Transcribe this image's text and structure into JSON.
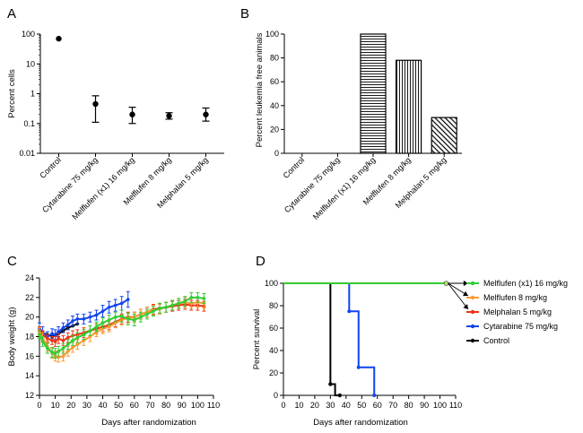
{
  "colors": {
    "green": "#33cc33",
    "orange": "#ff9933",
    "red": "#ee3311",
    "blue": "#1144ee",
    "black": "#000000"
  },
  "chart_data": [
    {
      "panel": "A",
      "type": "scatter",
      "ylabel": "Percent cells",
      "yscale": "log",
      "ylim": [
        0.01,
        100
      ],
      "yticks": [
        "0.01",
        "0.1",
        "1",
        "10",
        "100"
      ],
      "categories": [
        "Control",
        "Cytarabine 75 mg/kg",
        "Melflufen (x1) 16 mg/kg",
        "Melflufen 8 mg/kg",
        "Melphalan 5 mg/kg"
      ],
      "values": [
        70,
        0.45,
        0.2,
        0.18,
        0.2
      ],
      "err_low": [
        70,
        0.11,
        0.1,
        0.14,
        0.12
      ],
      "err_high": [
        70,
        0.85,
        0.35,
        0.23,
        0.33
      ]
    },
    {
      "panel": "B",
      "type": "bar",
      "ylabel": "Percent leukemia free animals",
      "ylim": [
        0,
        100
      ],
      "yticks": [
        "0",
        "20",
        "40",
        "60",
        "80",
        "100"
      ],
      "categories": [
        "Control",
        "Cytarabine 75 mg/kg",
        "Melflufen (x1) 16 mg/kg",
        "Melflufen 8 mg/kg",
        "Melphalan 5 mg/kg"
      ],
      "values": [
        0,
        0,
        100,
        78,
        30
      ],
      "patterns": [
        "none",
        "none",
        "horizontal",
        "vertical",
        "diagonal"
      ]
    },
    {
      "panel": "C",
      "type": "line",
      "xlabel": "Days after randomization",
      "ylabel": "Body weight (g)",
      "xlim": [
        0,
        110
      ],
      "ylim": [
        12,
        24
      ],
      "xticks": [
        "0",
        "10",
        "20",
        "30",
        "40",
        "50",
        "60",
        "70",
        "80",
        "90",
        "100",
        "110"
      ],
      "yticks": [
        "12",
        "14",
        "16",
        "18",
        "20",
        "22",
        "24"
      ],
      "series": [
        {
          "color": "black",
          "x": [
            0,
            2,
            5,
            8,
            10,
            12,
            15,
            18,
            21,
            24
          ],
          "y": [
            18.6,
            18.4,
            18.2,
            18.0,
            18.1,
            18.3,
            18.6,
            18.9,
            19.1,
            19.3
          ]
        },
        {
          "color": "blue",
          "x": [
            0,
            2,
            5,
            8,
            10,
            12,
            15,
            18,
            21,
            24,
            28,
            32,
            36,
            40,
            44,
            48,
            52,
            56
          ],
          "y": [
            18.8,
            18.5,
            18.0,
            18.3,
            18.2,
            18.5,
            18.9,
            19.2,
            19.6,
            19.8,
            19.8,
            20.0,
            20.2,
            20.6,
            21.0,
            21.2,
            21.4,
            21.8
          ],
          "err": [
            0.6,
            0.5,
            0.5,
            0.5,
            0.5,
            0.5,
            0.5,
            0.5,
            0.5,
            0.5,
            0.5,
            0.5,
            0.5,
            0.6,
            0.6,
            0.6,
            0.7,
            0.8
          ]
        },
        {
          "color": "red",
          "x": [
            0,
            2,
            5,
            8,
            10,
            12,
            15,
            18,
            21,
            24,
            28,
            32,
            36,
            40,
            44,
            48,
            52,
            56,
            60,
            64,
            68,
            72,
            76,
            80,
            84,
            88,
            92,
            96,
            100,
            104
          ],
          "y": [
            18.6,
            18.2,
            17.8,
            17.6,
            17.5,
            17.8,
            17.6,
            17.9,
            18.1,
            18.2,
            18.4,
            18.6,
            18.8,
            19.0,
            19.2,
            19.5,
            19.8,
            20.0,
            20.0,
            20.3,
            20.5,
            20.8,
            20.9,
            21.0,
            21.1,
            21.2,
            21.3,
            21.2,
            21.2,
            21.1
          ],
          "err": [
            0.4,
            0.4,
            0.4,
            0.4,
            0.5,
            0.5,
            0.5,
            0.5,
            0.5,
            0.5,
            0.5,
            0.5,
            0.5,
            0.5,
            0.5,
            0.5,
            0.5,
            0.5,
            0.5,
            0.5,
            0.5,
            0.5,
            0.5,
            0.5,
            0.5,
            0.5,
            0.5,
            0.5,
            0.5,
            0.5
          ]
        },
        {
          "color": "orange",
          "x": [
            0,
            2,
            5,
            8,
            10,
            12,
            15,
            18,
            21,
            24,
            28,
            32,
            36,
            40,
            44,
            48,
            52,
            56,
            60,
            64,
            68,
            72,
            76,
            80,
            84,
            88,
            92,
            96,
            100,
            104
          ],
          "y": [
            18.4,
            17.9,
            17.0,
            16.3,
            16.0,
            15.9,
            16.0,
            16.5,
            16.9,
            17.2,
            17.6,
            18.0,
            18.5,
            18.8,
            19.0,
            19.4,
            19.7,
            19.9,
            20.0,
            20.3,
            20.5,
            20.7,
            20.8,
            21.0,
            21.2,
            21.4,
            21.5,
            21.4,
            21.5,
            21.4
          ],
          "err": [
            0.5,
            0.5,
            0.5,
            0.5,
            0.5,
            0.5,
            0.5,
            0.5,
            0.5,
            0.5,
            0.5,
            0.5,
            0.5,
            0.5,
            0.5,
            0.5,
            0.5,
            0.5,
            0.5,
            0.5,
            0.5,
            0.5,
            0.5,
            0.5,
            0.5,
            0.5,
            0.5,
            0.5,
            0.5,
            0.5
          ]
        },
        {
          "color": "green",
          "x": [
            0,
            2,
            5,
            8,
            10,
            12,
            15,
            18,
            21,
            24,
            28,
            32,
            36,
            40,
            44,
            48,
            52,
            56,
            60,
            64,
            68,
            72,
            76,
            80,
            84,
            88,
            92,
            96,
            100,
            104
          ],
          "y": [
            18.2,
            17.5,
            16.8,
            16.4,
            16.3,
            16.5,
            16.8,
            17.2,
            17.6,
            17.9,
            18.2,
            18.6,
            19.0,
            19.4,
            19.7,
            20.0,
            20.1,
            19.8,
            19.7,
            20.0,
            20.3,
            20.6,
            20.9,
            21.0,
            21.2,
            21.4,
            21.6,
            22.0,
            22.0,
            21.9
          ],
          "err": [
            0.4,
            0.5,
            0.5,
            0.5,
            0.5,
            0.5,
            0.5,
            0.5,
            0.5,
            0.5,
            0.5,
            0.5,
            0.5,
            0.5,
            0.5,
            0.5,
            0.6,
            0.6,
            0.6,
            0.5,
            0.5,
            0.5,
            0.5,
            0.5,
            0.5,
            0.5,
            0.5,
            0.5,
            0.5,
            0.5
          ]
        }
      ]
    },
    {
      "panel": "D",
      "type": "line",
      "xlabel": "Days after randomization",
      "ylabel": "Percent survival",
      "xlim": [
        0,
        110
      ],
      "ylim": [
        0,
        100
      ],
      "xticks": [
        "0",
        "10",
        "20",
        "30",
        "40",
        "50",
        "60",
        "70",
        "80",
        "90",
        "100",
        "110"
      ],
      "yticks": [
        "0",
        "20",
        "40",
        "60",
        "80",
        "100"
      ],
      "series": [
        {
          "name": "Control",
          "color": "black",
          "x": [
            0,
            30,
            30,
            33,
            33,
            36,
            36
          ],
          "y": [
            100,
            100,
            10,
            10,
            0,
            0,
            0
          ]
        },
        {
          "name": "Cytarabine 75 mg/kg",
          "color": "blue",
          "x": [
            0,
            42,
            42,
            48,
            48,
            58,
            58
          ],
          "y": [
            100,
            100,
            75,
            75,
            25,
            25,
            0
          ]
        },
        {
          "name": "Melphalan 5 mg/kg",
          "color": "red",
          "x": [
            0,
            104
          ],
          "y": [
            100,
            100
          ]
        },
        {
          "name": "Melflufen 8 mg/kg",
          "color": "orange",
          "x": [
            0,
            104
          ],
          "y": [
            100,
            100
          ]
        },
        {
          "name": "Melflufen (x1) 16 mg/kg",
          "color": "green",
          "x": [
            0,
            104
          ],
          "y": [
            100,
            100
          ]
        }
      ],
      "legend": [
        {
          "label": "Melflufen (x1) 16 mg/kg",
          "color": "green"
        },
        {
          "label": "Melflufen 8 mg/kg",
          "color": "orange"
        },
        {
          "label": "Melphalan 5 mg/kg",
          "color": "red"
        },
        {
          "label": "Cytarabine 75 mg/kg",
          "color": "blue"
        },
        {
          "label": "Control",
          "color": "black"
        }
      ]
    }
  ]
}
